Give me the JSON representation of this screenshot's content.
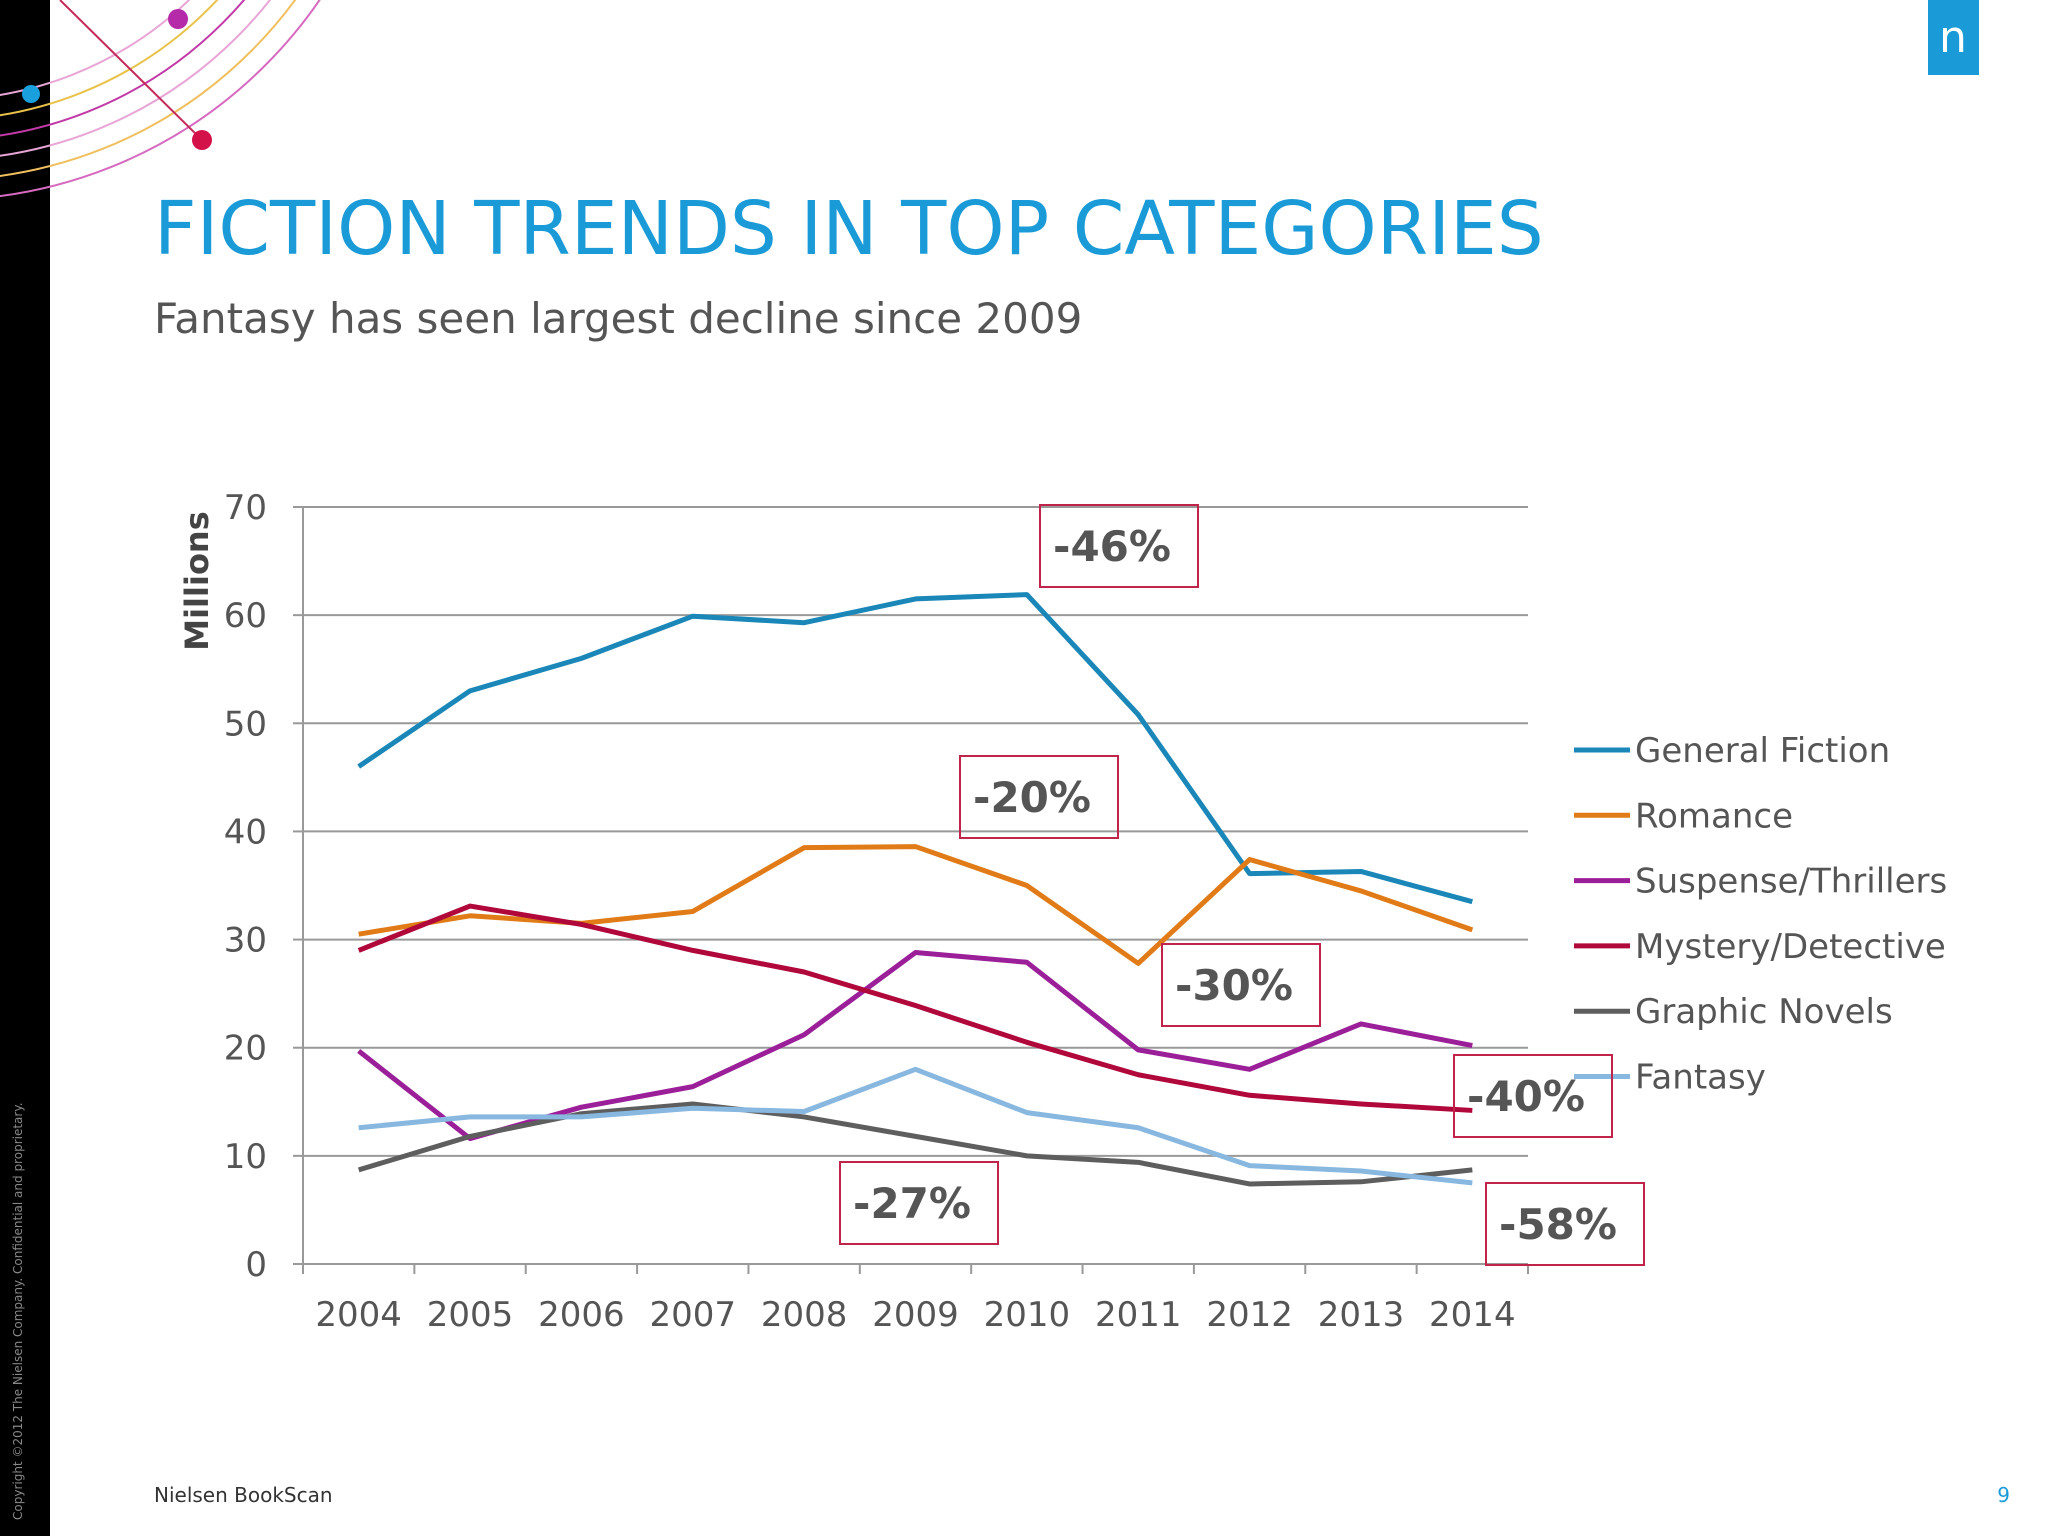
{
  "chart_data": {
    "type": "line",
    "title": "FICTION TRENDS IN TOP CATEGORIES",
    "subtitle": "Fantasy has seen largest decline since 2009",
    "y_label": "Millions",
    "categories": [
      "2004",
      "2005",
      "2006",
      "2007",
      "2008",
      "2009",
      "2010",
      "2011",
      "2012",
      "2013",
      "2014"
    ],
    "series": [
      {
        "name": "General Fiction",
        "color": "#1a87b8",
        "values": [
          46.0,
          53.0,
          56.0,
          59.9,
          59.3,
          61.5,
          61.9,
          50.8,
          36.1,
          36.3,
          33.5
        ]
      },
      {
        "name": "Romance",
        "color": "#e07b17",
        "values": [
          30.5,
          32.2,
          31.5,
          32.6,
          38.5,
          38.6,
          35.0,
          27.8,
          37.4,
          34.5,
          30.9
        ]
      },
      {
        "name": "Suspense/Thrillers",
        "color": "#9b1f99",
        "values": [
          19.7,
          11.6,
          14.5,
          16.4,
          21.2,
          28.8,
          27.9,
          19.8,
          18.0,
          22.2,
          20.2
        ]
      },
      {
        "name": "Mystery/Detective",
        "color": "#b0083a",
        "values": [
          29.0,
          33.1,
          31.4,
          29.0,
          27.0,
          23.9,
          20.5,
          17.5,
          15.6,
          14.8,
          14.2
        ]
      },
      {
        "name": "Graphic Novels",
        "color": "#5e5e5e",
        "values": [
          8.7,
          11.8,
          13.9,
          14.8,
          13.6,
          11.8,
          10.0,
          9.4,
          7.4,
          7.6,
          8.7
        ]
      },
      {
        "name": "Fantasy",
        "color": "#88b8e0",
        "values": [
          12.6,
          13.6,
          13.6,
          14.4,
          14.1,
          18.0,
          14.0,
          12.6,
          9.1,
          8.6,
          7.5
        ]
      }
    ],
    "ylim": [
      0,
      70
    ],
    "yticks": [
      0,
      10,
      20,
      30,
      40,
      50,
      60,
      70
    ],
    "grid": true,
    "legend": "right",
    "annotations": [
      "-46%",
      "-20%",
      "-30%",
      "-40%",
      "-27%",
      "-58%"
    ]
  },
  "footer": {
    "source": "Nielsen BookScan",
    "page": "9",
    "copyright": "Copyright ©2012 The Nielsen Company. Confidential and proprietary.",
    "logo": "n"
  }
}
